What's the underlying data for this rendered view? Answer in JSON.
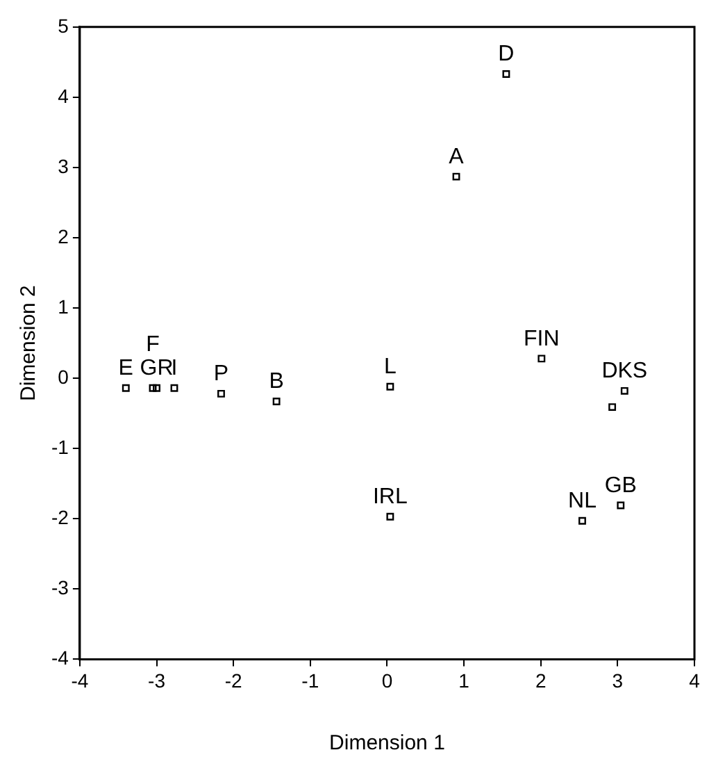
{
  "chart_data": {
    "type": "scatter",
    "xlabel": "Dimension 1",
    "ylabel": "Dimension 2",
    "xlim": [
      -4,
      4
    ],
    "ylim": [
      -4,
      5
    ],
    "xticks": [
      -4,
      -3,
      -2,
      -1,
      0,
      1,
      2,
      3,
      4
    ],
    "yticks": [
      -4,
      -3,
      -2,
      -1,
      0,
      1,
      2,
      3,
      4,
      5
    ],
    "grid": false,
    "marker": "square",
    "series": [
      {
        "color": "#000000",
        "x": [
          -3.4,
          -3.05,
          -3.0,
          -2.77,
          -2.16,
          -1.44,
          0.04,
          0.04,
          0.9,
          1.55,
          2.01,
          3.09,
          2.93,
          2.54,
          3.04
        ],
        "values": [
          -0.14,
          -0.14,
          -0.14,
          -0.14,
          -0.22,
          -0.33,
          -0.12,
          -1.97,
          2.87,
          4.33,
          0.28,
          -0.18,
          -0.41,
          -2.03,
          -1.81
        ]
      }
    ],
    "annotations": [
      {
        "text": "E",
        "x": -3.4,
        "y": -0.14
      },
      {
        "text": "GR",
        "x": -3.0,
        "y": -0.14
      },
      {
        "text": "F",
        "x": -3.05,
        "y": -0.14
      },
      {
        "text": "I",
        "x": -2.77,
        "y": -0.14
      },
      {
        "text": "P",
        "x": -2.16,
        "y": -0.22
      },
      {
        "text": "B",
        "x": -1.44,
        "y": -0.33
      },
      {
        "text": "L",
        "x": 0.04,
        "y": -0.12
      },
      {
        "text": "IRL",
        "x": 0.04,
        "y": -1.97
      },
      {
        "text": "A",
        "x": 0.9,
        "y": 2.87
      },
      {
        "text": "D",
        "x": 1.55,
        "y": 4.33
      },
      {
        "text": "FIN",
        "x": 2.01,
        "y": 0.28
      },
      {
        "text": "DKS",
        "x": 3.09,
        "y": -0.18
      },
      {
        "text": "NL",
        "x": 2.54,
        "y": -2.03
      },
      {
        "text": "GB",
        "x": 3.04,
        "y": -1.81
      }
    ]
  }
}
